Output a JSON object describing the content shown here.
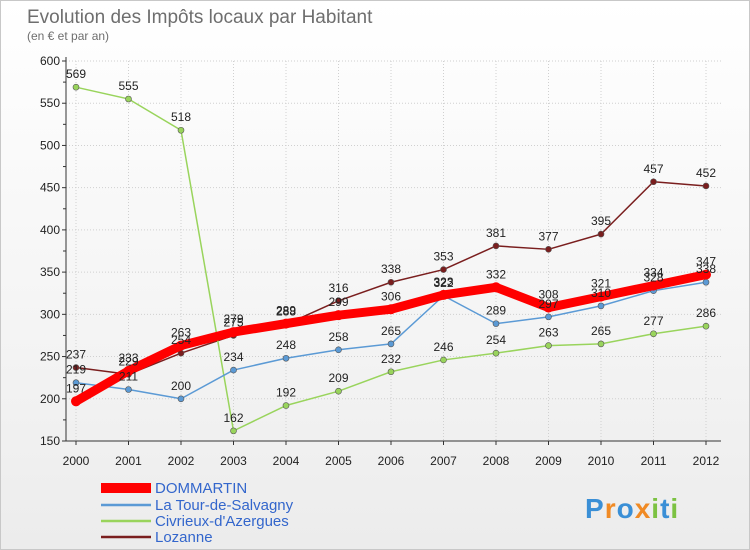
{
  "chart_data": {
    "type": "line",
    "title": "Evolution des Impôts locaux par Habitant",
    "subtitle": "(en € et par an)",
    "xlabel": "",
    "ylabel": "",
    "ylim": [
      150,
      600
    ],
    "yticks": [
      150,
      200,
      250,
      300,
      350,
      400,
      450,
      500,
      550,
      600
    ],
    "x": [
      "2000",
      "2001",
      "2002",
      "2003",
      "2004",
      "2005",
      "2006",
      "2007",
      "2008",
      "2009",
      "2010",
      "2011",
      "2012"
    ],
    "grid": true,
    "legend_position": "bottom-left",
    "series": [
      {
        "name": "Lozanne",
        "color": "#7a1e1e",
        "values": [
          237,
          229,
          254,
          275,
          288,
          316,
          338,
          353,
          381,
          377,
          395,
          457,
          452
        ],
        "labels": [
          "237",
          "229",
          "254",
          "275",
          "288",
          "316",
          "338",
          "353",
          "381",
          "377",
          "395",
          "457",
          "452"
        ]
      },
      {
        "name": "Civrieux-d'Azergues",
        "color": "#99d45c",
        "values": [
          569,
          555,
          518,
          162,
          192,
          209,
          232,
          246,
          254,
          263,
          265,
          277,
          286
        ],
        "labels": [
          "569",
          "555",
          "518",
          "162",
          "192",
          "209",
          "232",
          "246",
          "254",
          "263",
          "265",
          "277",
          "286"
        ]
      },
      {
        "name": "La Tour-de-Salvagny",
        "color": "#5b9ad5",
        "values": [
          219,
          211,
          200,
          234,
          248,
          258,
          265,
          322,
          289,
          297,
          310,
          328,
          338
        ],
        "labels": [
          "219",
          "211",
          "200",
          "234",
          "248",
          "258",
          "265",
          "322",
          "289",
          "297",
          "310",
          "328",
          "338"
        ]
      },
      {
        "name": "DOMMARTIN",
        "color": "#ff0000",
        "values": [
          197,
          233,
          263,
          279,
          289,
          299,
          306,
          323,
          332,
          308,
          321,
          334,
          347
        ],
        "labels": [
          "197",
          "233",
          "263",
          "279",
          "289",
          "299",
          "306",
          "323",
          "332",
          "308",
          "321",
          "334",
          "347"
        ]
      }
    ],
    "legend": [
      "DOMMARTIN",
      "La Tour-de-Salvagny",
      "Civrieux-d'Azergues",
      "Lozanne"
    ]
  },
  "brand": {
    "text": "Proxiti",
    "letters": [
      "P",
      "r",
      "o",
      "x",
      "i",
      "t",
      "i"
    ],
    "colors": [
      "#3a8fd6",
      "#f08a24",
      "#3a8fd6",
      "#f08a24",
      "#7cc242",
      "#3a8fd6",
      "#7cc242"
    ]
  },
  "colors": {
    "axis": "#333333",
    "grid": "#d0d0d0",
    "legend_text": "#3366cc"
  }
}
